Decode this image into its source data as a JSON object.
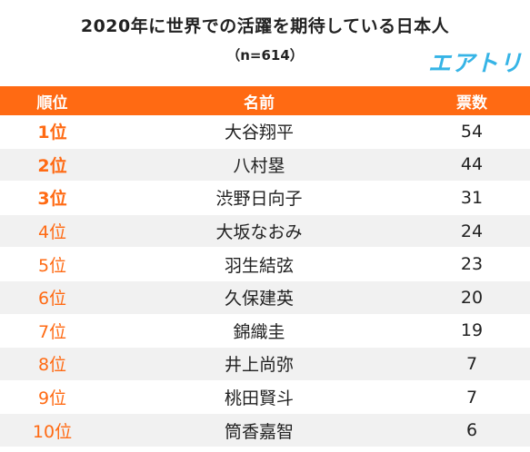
{
  "title": "2020年に世界での活躍を期待している日本人",
  "sample": "（n=614）",
  "logo": "エアトリ",
  "colors": {
    "accent": "#ff6a13",
    "logo": "#36b4e6",
    "stripe": "#f1f1f1"
  },
  "table": {
    "headers": [
      "順位",
      "名前",
      "票数"
    ],
    "rows": [
      {
        "rank": "1位",
        "name": "大谷翔平",
        "votes": "54"
      },
      {
        "rank": "2位",
        "name": "八村塁",
        "votes": "44"
      },
      {
        "rank": "3位",
        "name": "渋野日向子",
        "votes": "31"
      },
      {
        "rank": "4位",
        "name": "大坂なおみ",
        "votes": "24"
      },
      {
        "rank": "5位",
        "name": "羽生結弦",
        "votes": "23"
      },
      {
        "rank": "6位",
        "name": "久保建英",
        "votes": "20"
      },
      {
        "rank": "7位",
        "name": "錦織圭",
        "votes": "19"
      },
      {
        "rank": "8位",
        "name": "井上尚弥",
        "votes": "7"
      },
      {
        "rank": "9位",
        "name": "桃田賢斗",
        "votes": "7"
      },
      {
        "rank": "10位",
        "name": "筒香嘉智",
        "votes": "6"
      }
    ]
  }
}
